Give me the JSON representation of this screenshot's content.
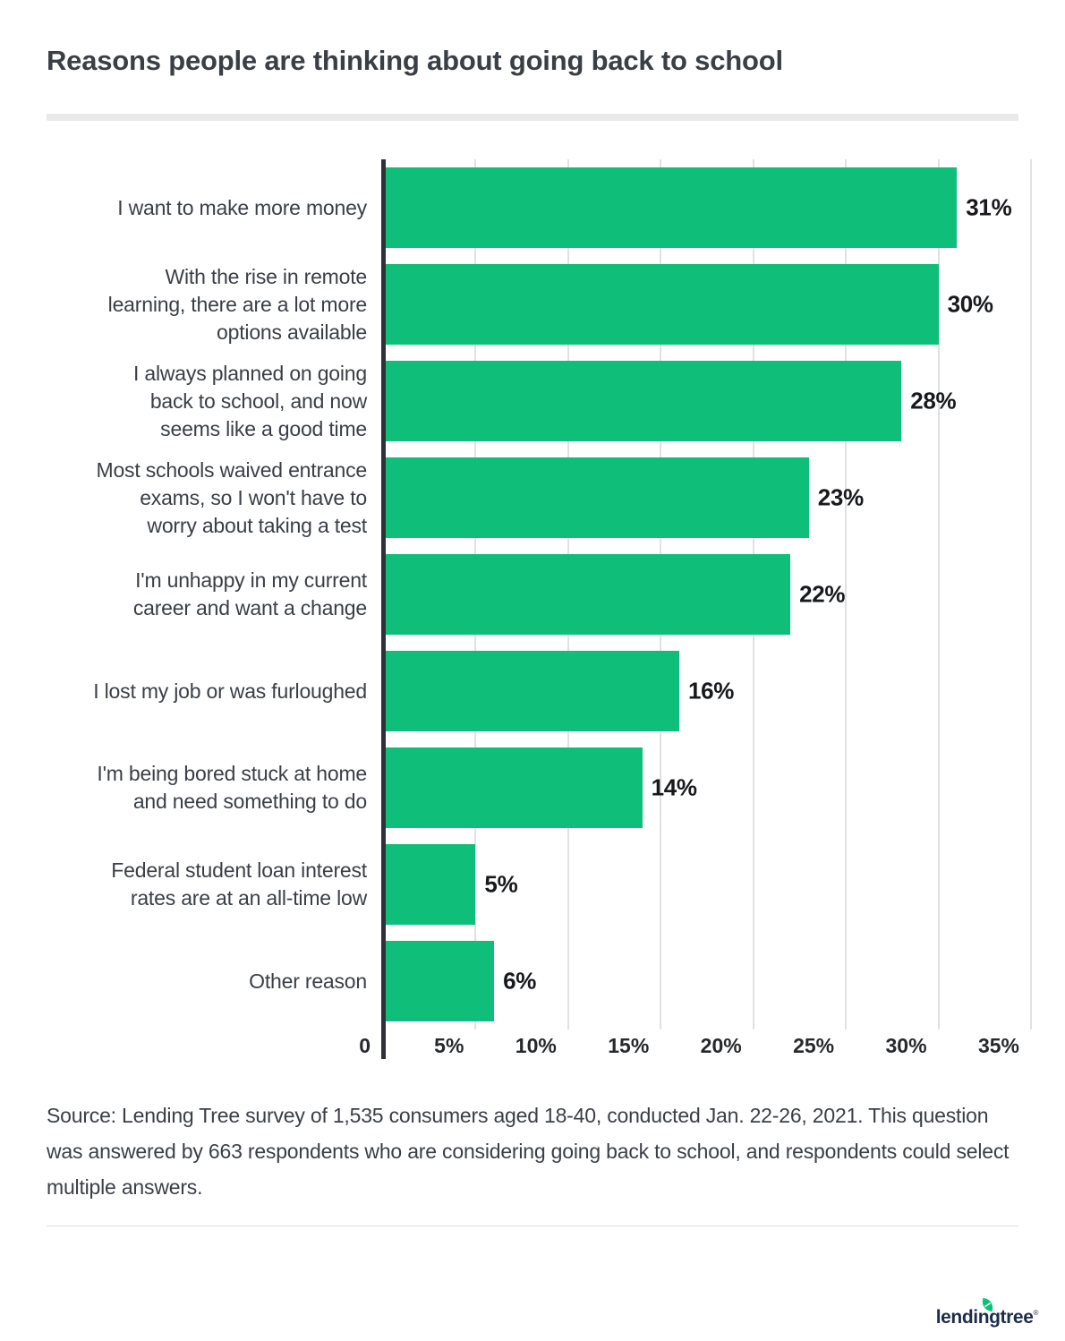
{
  "title": "Reasons people are thinking about going back to school",
  "chart_data": {
    "type": "bar",
    "orientation": "horizontal",
    "title": "Reasons people are thinking about going back to school",
    "categories": [
      "I want to make more money",
      "With the rise in remote\nlearning, there are a lot more\noptions available",
      "I always planned on going\nback to school, and now\nseems like a good time",
      "Most schools waived entrance\nexams, so I won't have to\nworry about taking a test",
      "I'm unhappy in my current\ncareer and want a change",
      "I lost my job or was furloughed",
      "I'm being bored stuck at home\nand need something to do",
      "Federal student loan interest\nrates are at an all-time low",
      "Other reason"
    ],
    "values": [
      31,
      30,
      28,
      23,
      22,
      16,
      14,
      5,
      6
    ],
    "value_labels": [
      "31%",
      "30%",
      "28%",
      "23%",
      "22%",
      "16%",
      "14%",
      "5%",
      "6%"
    ],
    "xlabel": "",
    "ylabel": "",
    "xlim": [
      0,
      35
    ],
    "x_ticks": [
      "0",
      "5%",
      "10%",
      "15%",
      "20%",
      "25%",
      "30%",
      "35%"
    ],
    "grid": "vertical",
    "legend": "none",
    "bar_color": "#0fbe78"
  },
  "source_note": "Source: Lending Tree survey of 1,535 consumers aged 18-40, conducted Jan. 22-26, 2021. This question was answered by 663 respondents who are considering going back to school, and respondents could select multiple answers.",
  "footer": {
    "logo_text": "lendingtree",
    "logo_registered": "®"
  },
  "colors": {
    "bar": "#0fbe78",
    "axis": "#2e3237",
    "gridline": "#e1e1e1",
    "text": "#3a3f46",
    "value_text": "#17191c",
    "logo_navy": "#1d2d49",
    "leaf_green": "#08c177"
  }
}
